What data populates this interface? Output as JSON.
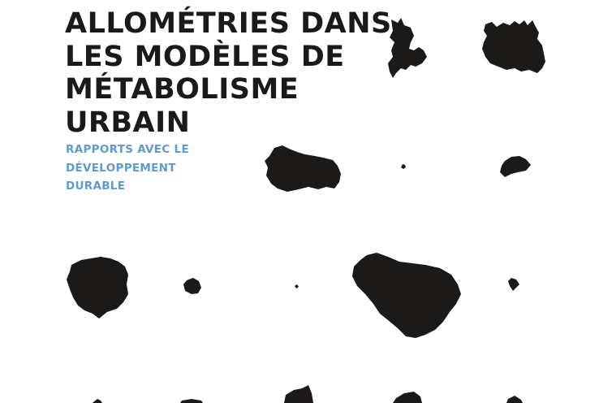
{
  "title": {
    "line1": "ALLOMÉTRIES DANS",
    "line2": "LES MODÈLES DE",
    "line3": "MÉTABOLISME",
    "line4": "URBAIN"
  },
  "subtitle": {
    "line1": "RAPPORTS AVEC LE",
    "line2": "DÉVELOPPEMENT",
    "line3": "DURABLE"
  },
  "colors": {
    "title": "#1b1a18",
    "subtitle": "#5d9cc9",
    "shapes": "#1b1a18",
    "background": "#ffffff"
  }
}
